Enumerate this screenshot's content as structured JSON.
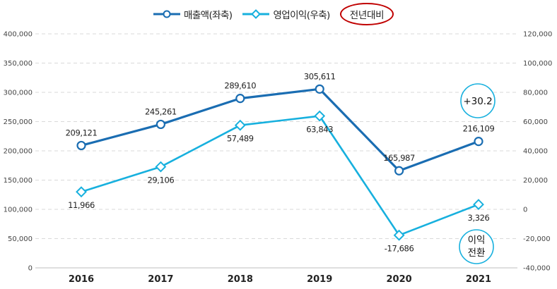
{
  "legend": {
    "revenue_label": "매출액(좌축)",
    "profit_label": "영업이익(우축)",
    "yoy_label": "전년대비"
  },
  "callouts": {
    "growth": "+30.2",
    "turnaround_line1": "이익",
    "turnaround_line2": "전환"
  },
  "colors": {
    "revenue": "#1a6db2",
    "profit": "#17b0de",
    "highlight": "#c00000",
    "grid": "#d9d9d9"
  },
  "chart_data": {
    "type": "line",
    "categories": [
      "2016",
      "2017",
      "2018",
      "2019",
      "2020",
      "2021"
    ],
    "series": [
      {
        "name": "매출액(좌축)",
        "axis": "left",
        "marker": "circle",
        "values": [
          209121,
          245261,
          289610,
          305611,
          165987,
          216109
        ],
        "labels": [
          "209,121",
          "245,261",
          "289,610",
          "305,611",
          "165,987",
          "216,109"
        ]
      },
      {
        "name": "영업이익(우축)",
        "axis": "right",
        "marker": "diamond",
        "values": [
          11966,
          29106,
          57489,
          63843,
          -17686,
          3326
        ],
        "labels": [
          "11,966",
          "29,106",
          "57,489",
          "63,843",
          "-17,686",
          "3,326"
        ]
      }
    ],
    "y_left": {
      "min": 0,
      "max": 400000,
      "step": 50000,
      "tick_labels": [
        "0",
        "50,000",
        "100,000",
        "150,000",
        "200,000",
        "250,000",
        "300,000",
        "350,000",
        "400,000"
      ]
    },
    "y_right": {
      "min": -40000,
      "max": 120000,
      "step": 20000,
      "tick_labels": [
        "-40,000",
        "-20,000",
        "0",
        "20,000",
        "40,000",
        "60,000",
        "80,000",
        "100,000",
        "120,000"
      ]
    },
    "grid": true,
    "legend_position": "top-center"
  }
}
